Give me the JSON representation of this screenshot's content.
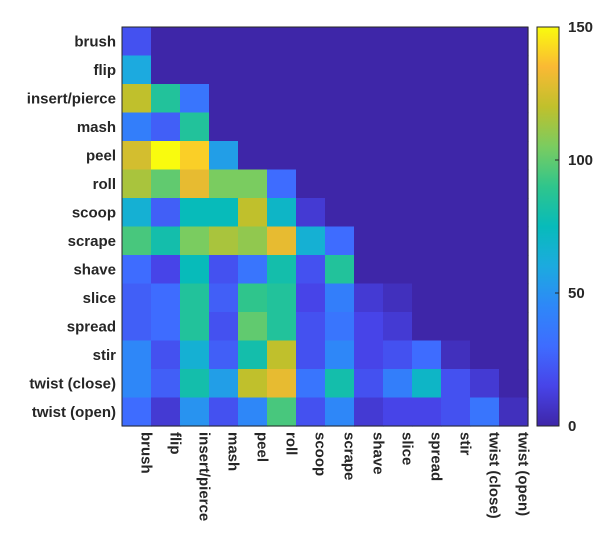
{
  "chart_data": {
    "type": "heatmap",
    "title": "",
    "xlabel": "",
    "ylabel": "",
    "row_labels": [
      "brush",
      "flip",
      "insert/pierce",
      "mash",
      "peel",
      "roll",
      "scoop",
      "scrape",
      "shave",
      "slice",
      "spread",
      "stir",
      "twist (close)",
      "twist (open)"
    ],
    "col_labels": [
      "brush",
      "flip",
      "insert/pierce",
      "mash",
      "peel",
      "roll",
      "scoop",
      "scrape",
      "shave",
      "slice",
      "spread",
      "stir",
      "twist (close)",
      "twist (open)"
    ],
    "values": [
      [
        20,
        0,
        0,
        0,
        0,
        0,
        0,
        0,
        0,
        0,
        0,
        0,
        0,
        0
      ],
      [
        60,
        0,
        0,
        0,
        0,
        0,
        0,
        0,
        0,
        0,
        0,
        0,
        0,
        0
      ],
      [
        120,
        85,
        35,
        0,
        0,
        0,
        0,
        0,
        0,
        0,
        0,
        0,
        0,
        0
      ],
      [
        40,
        25,
        85,
        0,
        0,
        0,
        0,
        0,
        0,
        0,
        0,
        0,
        0,
        0
      ],
      [
        125,
        150,
        140,
        55,
        0,
        0,
        0,
        0,
        0,
        0,
        0,
        0,
        0,
        0
      ],
      [
        115,
        100,
        130,
        105,
        105,
        30,
        0,
        0,
        0,
        0,
        0,
        0,
        0,
        0
      ],
      [
        65,
        25,
        75,
        75,
        120,
        70,
        10,
        0,
        0,
        0,
        0,
        0,
        0,
        0
      ],
      [
        95,
        80,
        105,
        115,
        110,
        130,
        65,
        30,
        0,
        0,
        0,
        0,
        0,
        0
      ],
      [
        30,
        15,
        75,
        20,
        35,
        80,
        20,
        85,
        0,
        0,
        0,
        0,
        0,
        0
      ],
      [
        25,
        30,
        85,
        25,
        90,
        85,
        15,
        40,
        10,
        5,
        0,
        0,
        0,
        0
      ],
      [
        25,
        30,
        85,
        20,
        100,
        85,
        20,
        35,
        15,
        10,
        0,
        0,
        0,
        0
      ],
      [
        45,
        20,
        65,
        25,
        80,
        120,
        20,
        45,
        15,
        20,
        30,
        5,
        0,
        0
      ],
      [
        45,
        25,
        80,
        55,
        120,
        130,
        35,
        80,
        20,
        40,
        70,
        20,
        10,
        0
      ],
      [
        30,
        10,
        50,
        20,
        45,
        95,
        20,
        45,
        10,
        15,
        15,
        20,
        35,
        5
      ]
    ],
    "colorbar": {
      "min": 0,
      "max": 150,
      "ticks": [
        0,
        50,
        100,
        150
      ],
      "colormap": "parula"
    }
  }
}
